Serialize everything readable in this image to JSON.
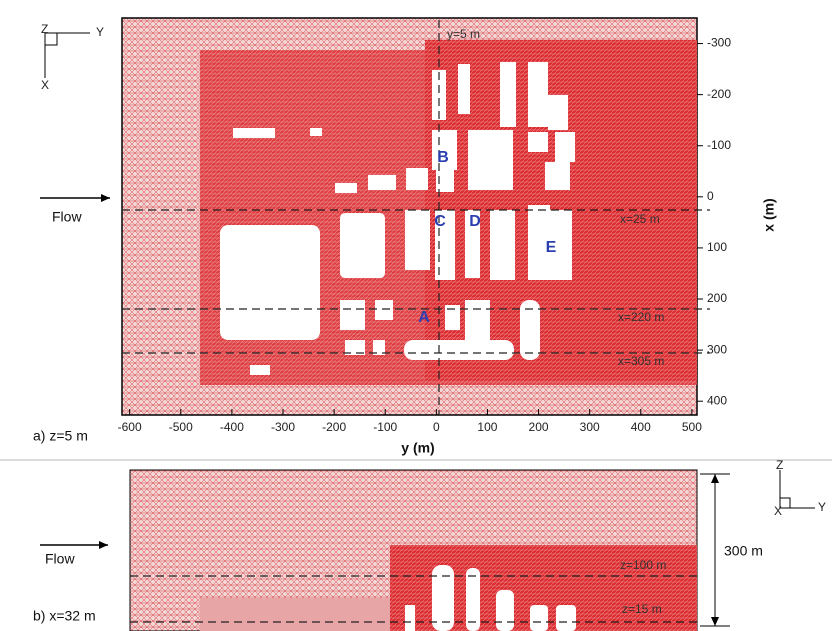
{
  "panel_a": {
    "label": "a) z=5 m",
    "flow": "Flow",
    "xlabel": "y (m)",
    "ylabel": "x (m)",
    "xlim": [
      -615,
      510
    ],
    "xticks": [
      -600,
      -500,
      -400,
      -300,
      -200,
      -100,
      0,
      100,
      200,
      300,
      400,
      500
    ],
    "ylim": [
      -350,
      427
    ],
    "yticks": [
      -300,
      -200,
      -100,
      0,
      100,
      200,
      300,
      400
    ],
    "annotations": [
      "y=5 m",
      "x=25 m",
      "x=220 m",
      "x=305 m"
    ],
    "buildings": [
      "A",
      "B",
      "C",
      "D",
      "E"
    ],
    "axes_triad": [
      "Z",
      "Y",
      "X"
    ]
  },
  "panel_b": {
    "label": "b) x=32 m",
    "flow": "Flow",
    "height": "300 m",
    "annotations": [
      "z=100 m",
      "z=15 m"
    ],
    "axes_triad": [
      "Z",
      "Y",
      "X"
    ]
  }
}
